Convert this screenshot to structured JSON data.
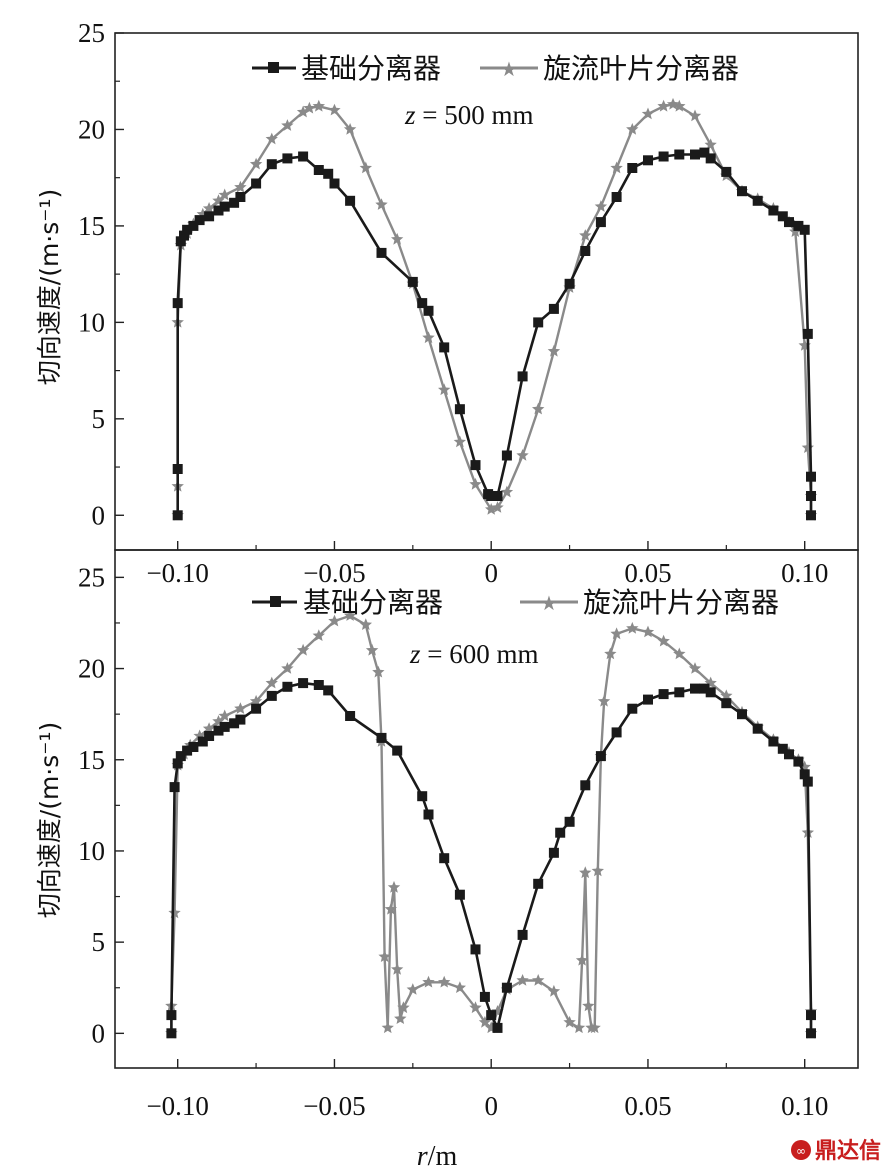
{
  "chart_data": [
    {
      "type": "line",
      "annotation": "z = 500 mm",
      "annotation_var": "z",
      "annotation_rest": " = 500 mm",
      "ylabel": "切向速度/(m·s⁻¹)",
      "xlim": [
        -0.12,
        0.117
      ],
      "ylim": [
        -1.8,
        25
      ],
      "yticks": [
        0,
        5,
        10,
        15,
        20,
        25
      ],
      "xticks": [
        -0.1,
        -0.05,
        0,
        0.05,
        0.1
      ],
      "xtick_labels": [
        "−0.10",
        "−0.05",
        "0",
        "0.05",
        "0.10"
      ],
      "series": [
        {
          "name": "基础分离器",
          "color": "#1a1a1a",
          "marker": "square",
          "x": [
            -0.1,
            -0.1,
            -0.1,
            -0.099,
            -0.098,
            -0.097,
            -0.095,
            -0.093,
            -0.09,
            -0.087,
            -0.085,
            -0.082,
            -0.08,
            -0.075,
            -0.07,
            -0.065,
            -0.06,
            -0.055,
            -0.052,
            -0.05,
            -0.045,
            -0.035,
            -0.025,
            -0.022,
            -0.02,
            -0.015,
            -0.01,
            -0.005,
            -0.001,
            0,
            0.002,
            0.005,
            0.01,
            0.015,
            0.02,
            0.025,
            0.03,
            0.035,
            0.04,
            0.045,
            0.05,
            0.055,
            0.06,
            0.065,
            0.068,
            0.07,
            0.075,
            0.08,
            0.085,
            0.09,
            0.093,
            0.095,
            0.098,
            0.1,
            0.101,
            0.102,
            0.102,
            0.102
          ],
          "y": [
            0,
            2.4,
            11,
            14.2,
            14.5,
            14.8,
            15,
            15.3,
            15.5,
            15.8,
            16,
            16.2,
            16.5,
            17.2,
            18.2,
            18.5,
            18.6,
            17.9,
            17.7,
            17.2,
            16.3,
            13.6,
            12.1,
            11,
            10.6,
            8.7,
            5.5,
            2.6,
            1.1,
            1,
            1,
            3.1,
            7.2,
            10,
            10.7,
            12,
            13.7,
            15.2,
            16.5,
            18,
            18.4,
            18.6,
            18.7,
            18.7,
            18.8,
            18.5,
            17.8,
            16.8,
            16.3,
            15.8,
            15.5,
            15.2,
            15,
            14.8,
            9.4,
            2,
            1,
            0
          ]
        },
        {
          "name": "旋流叶片分离器",
          "color": "#8a8a8a",
          "marker": "star",
          "x": [
            -0.1,
            -0.1,
            -0.1,
            -0.099,
            -0.097,
            -0.095,
            -0.092,
            -0.09,
            -0.087,
            -0.085,
            -0.08,
            -0.075,
            -0.07,
            -0.065,
            -0.06,
            -0.058,
            -0.055,
            -0.05,
            -0.045,
            -0.04,
            -0.035,
            -0.03,
            -0.025,
            -0.02,
            -0.015,
            -0.01,
            -0.005,
            0,
            0.002,
            0.005,
            0.01,
            0.015,
            0.02,
            0.025,
            0.03,
            0.035,
            0.04,
            0.045,
            0.05,
            0.055,
            0.058,
            0.06,
            0.065,
            0.07,
            0.075,
            0.08,
            0.085,
            0.09,
            0.095,
            0.097,
            0.1,
            0.101,
            0.102,
            0.102
          ],
          "y": [
            0,
            1.5,
            10,
            14,
            14.6,
            15.1,
            15.6,
            15.9,
            16.3,
            16.6,
            17,
            18.2,
            19.5,
            20.2,
            20.9,
            21.1,
            21.2,
            21,
            20,
            18,
            16.1,
            14.3,
            12,
            9.2,
            6.5,
            3.8,
            1.6,
            0.3,
            0.4,
            1.2,
            3.1,
            5.5,
            8.5,
            11.8,
            14.5,
            16,
            18,
            20,
            20.8,
            21.2,
            21.3,
            21.2,
            20.7,
            19.2,
            17.6,
            16.8,
            16.4,
            15.9,
            15.2,
            14.7,
            8.8,
            3.5,
            1,
            0
          ]
        }
      ]
    },
    {
      "type": "line",
      "annotation": "z = 600 mm",
      "annotation_var": "z",
      "annotation_rest": " = 600 mm",
      "ylabel": "切向速度/(m·s⁻¹)",
      "xlabel": "r/m",
      "xlabel_var": "r",
      "xlabel_rest": "/m",
      "xlim": [
        -0.12,
        0.117
      ],
      "ylim": [
        -1.9,
        26.5
      ],
      "yticks": [
        0,
        5,
        10,
        15,
        20,
        25
      ],
      "xticks": [
        -0.1,
        -0.05,
        0,
        0.05,
        0.1
      ],
      "xtick_labels": [
        "−0.10",
        "−0.05",
        "0",
        "0.05",
        "0.10"
      ],
      "series": [
        {
          "name": "基础分离器",
          "color": "#1a1a1a",
          "marker": "square",
          "x": [
            -0.102,
            -0.102,
            -0.101,
            -0.1,
            -0.099,
            -0.097,
            -0.095,
            -0.092,
            -0.09,
            -0.087,
            -0.085,
            -0.082,
            -0.08,
            -0.075,
            -0.07,
            -0.065,
            -0.06,
            -0.055,
            -0.052,
            -0.045,
            -0.035,
            -0.03,
            -0.022,
            -0.02,
            -0.015,
            -0.01,
            -0.005,
            -0.002,
            0,
            0.002,
            0.005,
            0.01,
            0.015,
            0.02,
            0.022,
            0.025,
            0.03,
            0.035,
            0.04,
            0.045,
            0.05,
            0.055,
            0.06,
            0.065,
            0.068,
            0.07,
            0.075,
            0.08,
            0.085,
            0.09,
            0.093,
            0.095,
            0.098,
            0.1,
            0.101,
            0.102,
            0.102
          ],
          "y": [
            0,
            1,
            13.5,
            14.8,
            15.2,
            15.5,
            15.7,
            16,
            16.3,
            16.6,
            16.8,
            17,
            17.2,
            17.8,
            18.5,
            19,
            19.2,
            19.1,
            18.8,
            17.4,
            16.2,
            15.5,
            13,
            12,
            9.6,
            7.6,
            4.6,
            2,
            1,
            0.3,
            2.5,
            5.4,
            8.2,
            9.9,
            11,
            11.6,
            13.6,
            15.2,
            16.5,
            17.8,
            18.3,
            18.6,
            18.7,
            18.9,
            18.9,
            18.7,
            18.1,
            17.5,
            16.7,
            16,
            15.6,
            15.3,
            14.9,
            14.2,
            13.8,
            1,
            0
          ]
        },
        {
          "name": "旋流叶片分离器",
          "color": "#8a8a8a",
          "marker": "star",
          "x": [
            -0.102,
            -0.102,
            -0.101,
            -0.1,
            -0.098,
            -0.096,
            -0.093,
            -0.09,
            -0.087,
            -0.085,
            -0.08,
            -0.075,
            -0.07,
            -0.065,
            -0.06,
            -0.055,
            -0.05,
            -0.045,
            -0.04,
            -0.038,
            -0.036,
            -0.035,
            -0.034,
            -0.033,
            -0.032,
            -0.031,
            -0.03,
            -0.029,
            -0.028,
            -0.025,
            -0.02,
            -0.015,
            -0.01,
            -0.005,
            -0.002,
            0,
            0.002,
            0.005,
            0.01,
            0.015,
            0.02,
            0.025,
            0.028,
            0.029,
            0.03,
            0.031,
            0.032,
            0.033,
            0.034,
            0.035,
            0.036,
            0.038,
            0.04,
            0.045,
            0.05,
            0.055,
            0.06,
            0.065,
            0.07,
            0.075,
            0.08,
            0.085,
            0.09,
            0.095,
            0.098,
            0.1,
            0.101,
            0.102,
            0.102
          ],
          "y": [
            0,
            1.5,
            6.6,
            14.7,
            15.3,
            15.8,
            16.3,
            16.7,
            17.1,
            17.4,
            17.8,
            18.2,
            19.2,
            20,
            21,
            21.8,
            22.6,
            22.9,
            22.4,
            21,
            19.8,
            16,
            4.2,
            0.3,
            6.8,
            8,
            3.5,
            0.8,
            1.4,
            2.4,
            2.8,
            2.8,
            2.5,
            1.4,
            0.6,
            0.3,
            1.2,
            2.4,
            2.9,
            2.9,
            2.3,
            0.6,
            0.3,
            4,
            8.8,
            1.5,
            0.3,
            0.3,
            8.9,
            15.2,
            18.2,
            20.8,
            21.9,
            22.2,
            22,
            21.5,
            20.8,
            20,
            19.2,
            18.5,
            17.6,
            16.8,
            16.1,
            15.4,
            15,
            14.6,
            11,
            1.2,
            0
          ]
        }
      ]
    }
  ],
  "watermark": "鼎达信"
}
